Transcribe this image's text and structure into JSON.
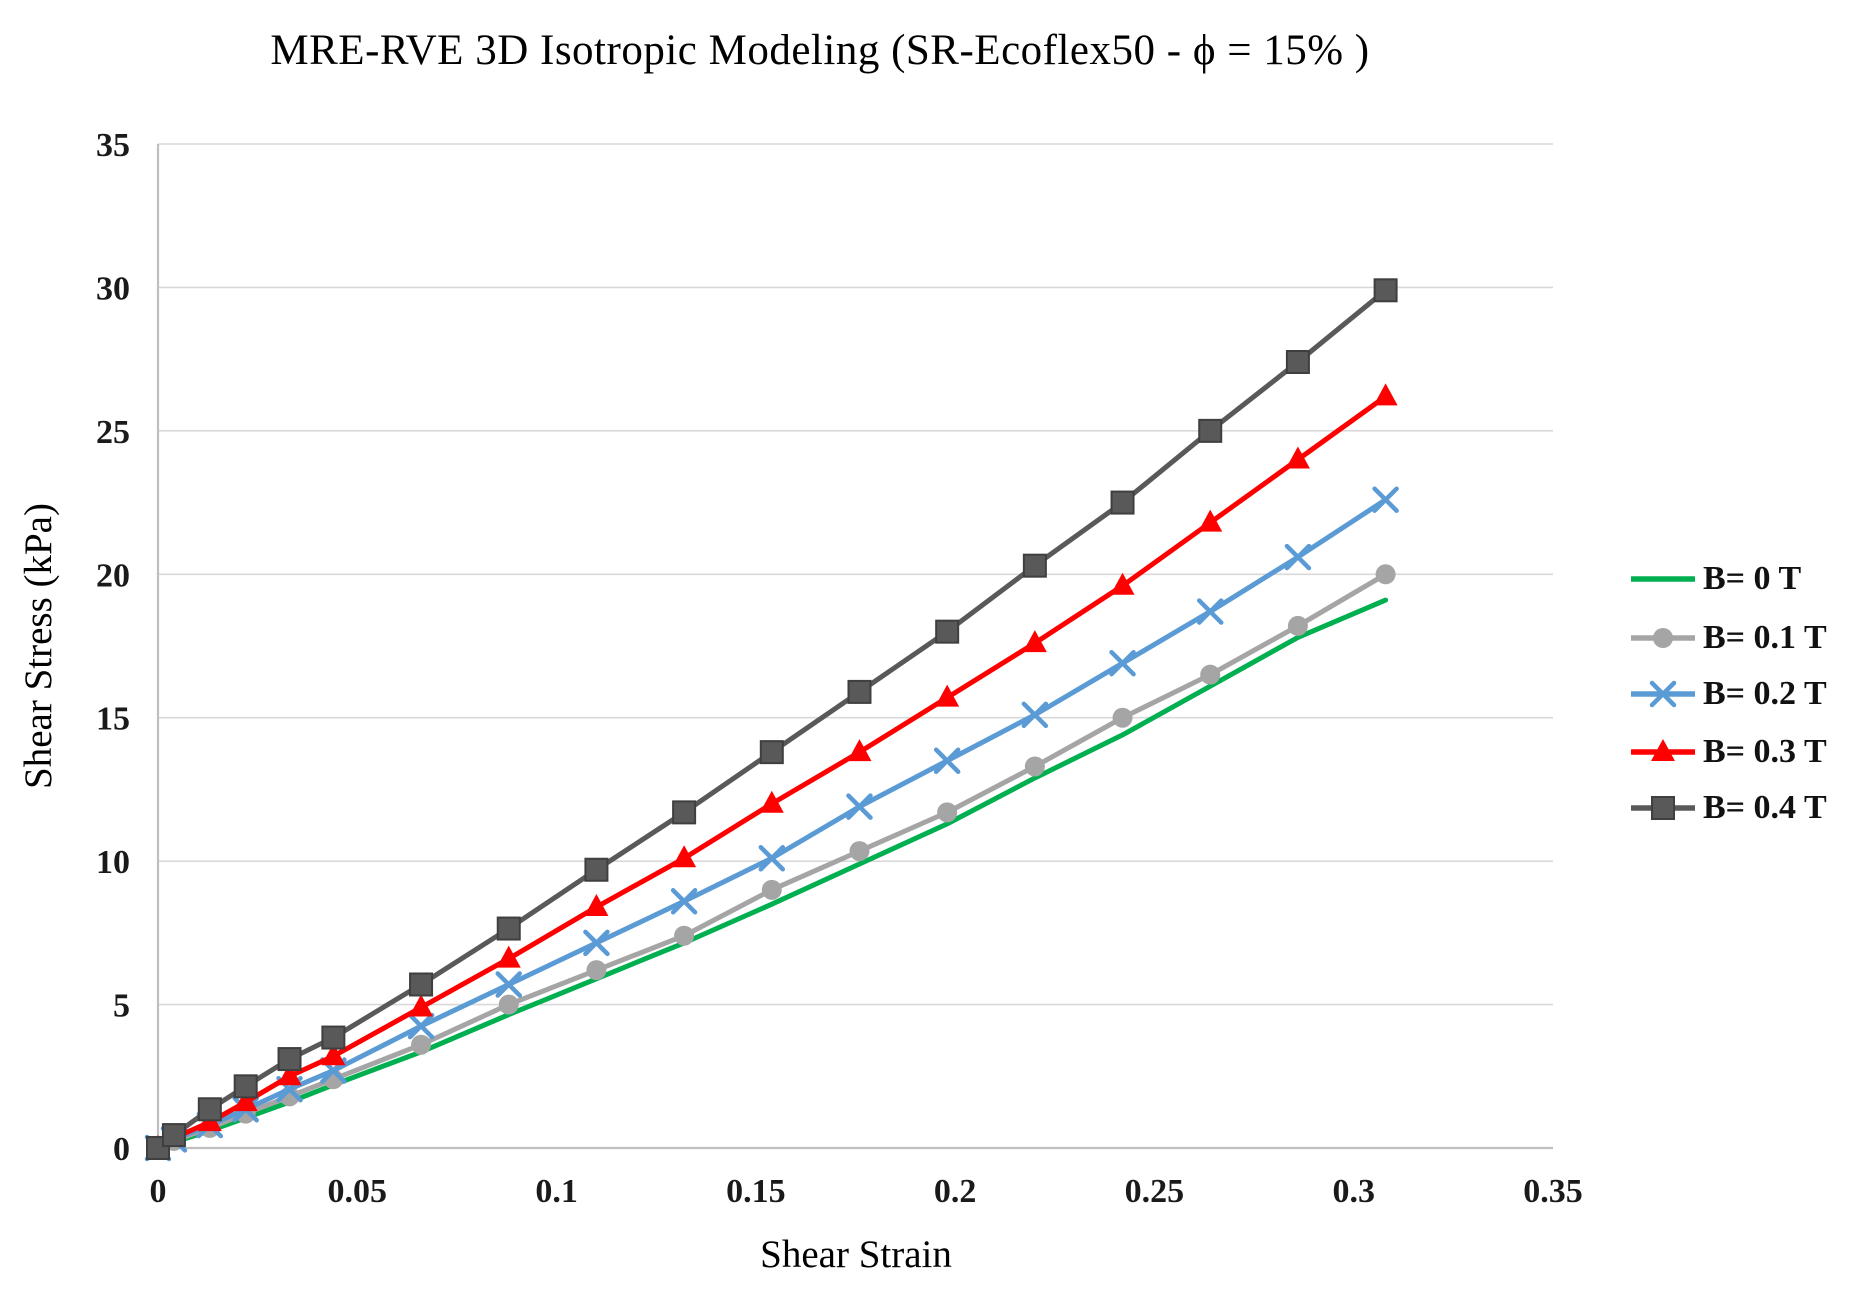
{
  "chart_data": {
    "type": "line",
    "title": "MRE-RVE 3D Isotropic Modeling (SR-Ecoflex50 - ϕ = 15% )",
    "xlabel": "Shear Strain",
    "ylabel": "Shear Stress (kPa)",
    "xlim": [
      0,
      0.35
    ],
    "ylim": [
      0,
      35
    ],
    "x_ticks": [
      0,
      0.05,
      0.1,
      0.15,
      0.2,
      0.25,
      0.3,
      0.35
    ],
    "x_tick_labels": [
      "0",
      "0.05",
      "0.1",
      "0.15",
      "0.2",
      "0.25",
      "0.3",
      "0.35"
    ],
    "y_ticks": [
      0,
      5,
      10,
      15,
      20,
      25,
      30,
      35
    ],
    "y_tick_labels": [
      "0",
      "5",
      "10",
      "15",
      "20",
      "25",
      "30",
      "35"
    ],
    "grid": "horizontal",
    "legend_position": "right",
    "x": [
      0,
      0.004,
      0.013,
      0.022,
      0.033,
      0.044,
      0.066,
      0.088,
      0.11,
      0.132,
      0.154,
      0.176,
      0.198,
      0.22,
      0.242,
      0.264,
      0.286,
      0.308
    ],
    "series": [
      {
        "name": "B= 0 T",
        "color": "#00B050",
        "marker": "none",
        "values": [
          0,
          0.2,
          0.6,
          1.05,
          1.6,
          2.2,
          3.35,
          4.65,
          5.9,
          7.15,
          8.5,
          9.9,
          11.3,
          12.9,
          14.4,
          16.1,
          17.8,
          19.1
        ]
      },
      {
        "name": "B= 0.1 T",
        "color": "#A5A5A5",
        "marker": "circle",
        "values": [
          0,
          0.25,
          0.7,
          1.2,
          1.8,
          2.4,
          3.6,
          5.0,
          6.2,
          7.4,
          9.0,
          10.35,
          11.7,
          13.3,
          15.0,
          16.5,
          18.2,
          20.0
        ]
      },
      {
        "name": "B= 0.2 T",
        "color": "#5B9BD5",
        "marker": "x",
        "values": [
          0,
          0.3,
          0.8,
          1.35,
          2.05,
          2.7,
          4.25,
          5.7,
          7.15,
          8.6,
          10.1,
          11.9,
          13.5,
          15.1,
          16.9,
          18.7,
          20.6,
          22.6
        ]
      },
      {
        "name": "B= 0.3 T",
        "color": "#FF0000",
        "marker": "triangle",
        "values": [
          0,
          0.35,
          0.9,
          1.6,
          2.5,
          3.2,
          4.9,
          6.6,
          8.4,
          10.1,
          12.0,
          13.8,
          15.7,
          17.6,
          19.6,
          21.8,
          24.0,
          26.2
        ]
      },
      {
        "name": "B= 0.4 T",
        "color": "#595959",
        "marker": "square",
        "values": [
          0,
          0.45,
          1.35,
          2.15,
          3.1,
          3.85,
          5.7,
          7.65,
          9.7,
          11.7,
          13.8,
          15.9,
          18.0,
          20.3,
          22.5,
          25.0,
          27.4,
          29.9
        ]
      }
    ]
  },
  "style": {
    "gridline_color": "#D9D9D9",
    "axis_line_color": "#BFBFBF",
    "tick_text_color": "#1a1a1a",
    "line_width": 5
  }
}
